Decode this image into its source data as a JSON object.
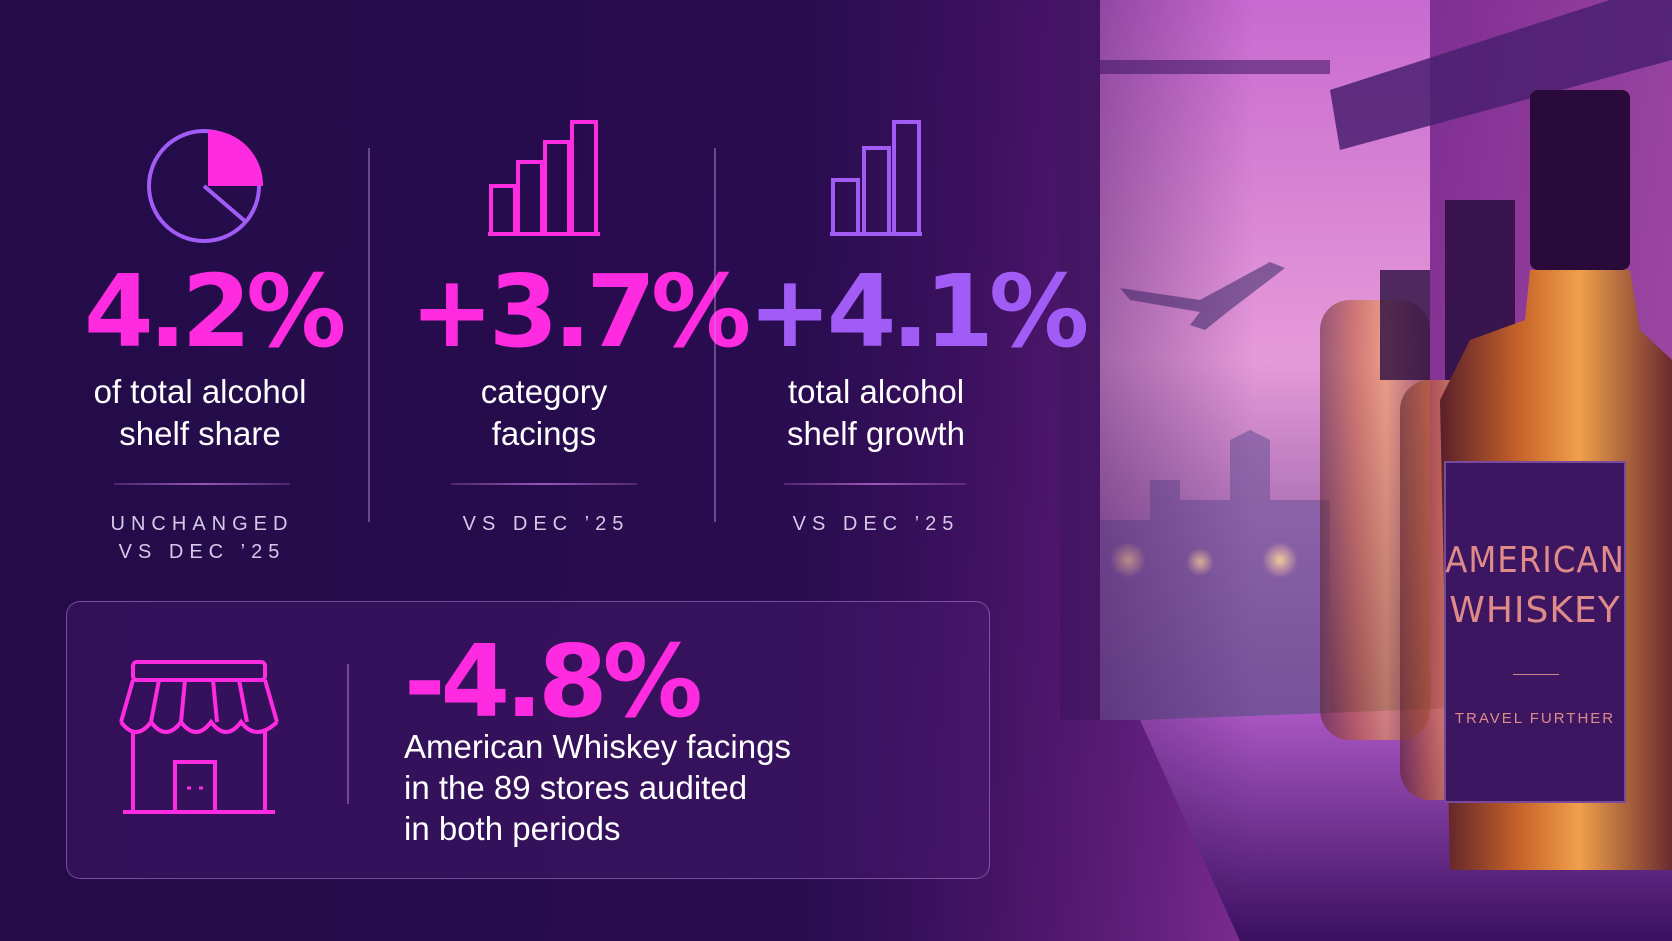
{
  "colors": {
    "magenta": "#ff2be0",
    "violet": "#a25cf6",
    "text": "#ffffff",
    "muted": "#d8c8e8"
  },
  "stats": [
    {
      "icon": "pie-chart-icon",
      "value": "4.2%",
      "desc_line1": "of total alcohol",
      "desc_line2": "shelf share",
      "note_line1": "UNCHANGED",
      "note_line2": "VS DEC ’25"
    },
    {
      "icon": "bar-chart-icon",
      "value": "+3.7%",
      "desc_line1": "category",
      "desc_line2": "facings",
      "note_line1": "VS DEC ’25"
    },
    {
      "icon": "bar-chart-icon",
      "value": "+4.1%",
      "desc_line1": "total alcohol",
      "desc_line2": "shelf growth",
      "note_line1": "VS DEC ’25"
    }
  ],
  "panel": {
    "icon": "storefront-icon",
    "value": "-4.8%",
    "desc_line1": "American Whiskey facings",
    "desc_line2": "in the 89 stores audited",
    "desc_line3": "in both periods"
  },
  "bottle_label": {
    "line1": "AMERICAN",
    "line2": "WHISKEY",
    "tagline": "TRAVEL FURTHER"
  }
}
